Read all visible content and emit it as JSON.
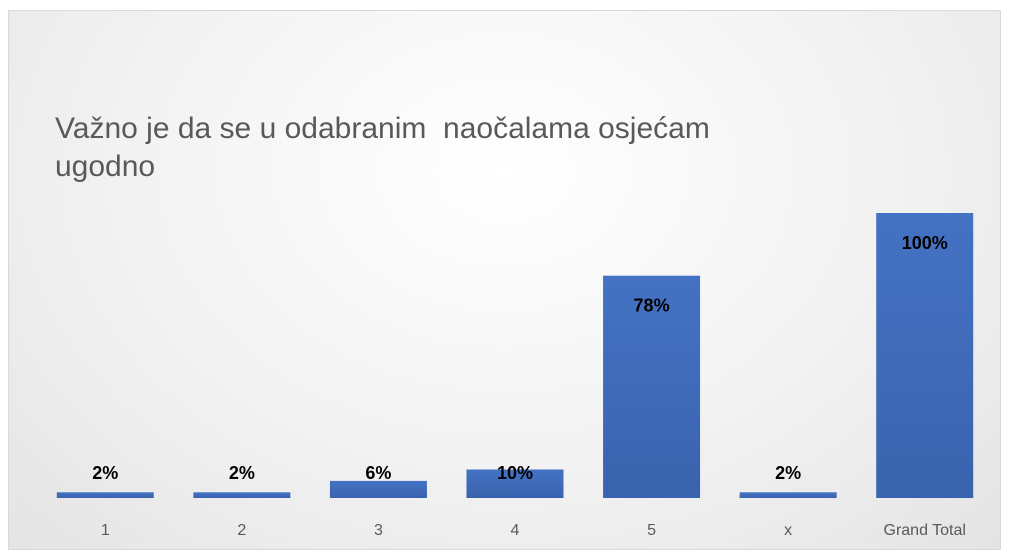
{
  "chart_data": {
    "type": "bar",
    "title": "Važno je da se u odabranim  naočalama osjećam ugodno",
    "categories": [
      "1",
      "2",
      "3",
      "4",
      "5",
      "x",
      "Grand Total"
    ],
    "values": [
      2,
      2,
      6,
      10,
      78,
      2,
      100
    ],
    "value_labels": [
      "2%",
      "2%",
      "6%",
      "10%",
      "78%",
      "2%",
      "100%"
    ],
    "color": "#4472c4"
  }
}
